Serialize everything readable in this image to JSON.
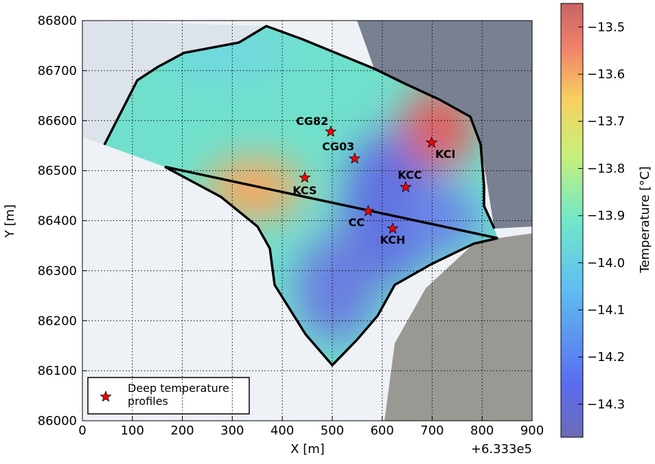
{
  "chart_data": {
    "type": "scatter",
    "xlabel": "X [m]",
    "ylabel": "Y [m]",
    "x_offset_label": "+6.333e5",
    "xlim": [
      0,
      900
    ],
    "xticks": [
      0,
      100,
      200,
      300,
      400,
      500,
      600,
      700,
      800,
      900
    ],
    "ylim": [
      86000,
      86800
    ],
    "yticks": [
      86000,
      86100,
      86200,
      86300,
      86400,
      86500,
      86600,
      86700,
      86800
    ],
    "grid": true,
    "legend_position": "lower left",
    "series": [
      {
        "name": "Deep temperature profiles",
        "color": "#ff0000",
        "labels": [
          "KCS",
          "CG82",
          "CG03",
          "KCI",
          "KCC",
          "CC",
          "KCH"
        ],
        "x": [
          445,
          497,
          545,
          699,
          647,
          572,
          621
        ],
        "values": [
          86486,
          86578,
          86524,
          86556,
          86467,
          86419,
          86384
        ]
      }
    ],
    "colorbar": {
      "label": "Temperature [°C]",
      "clim": [
        -14.37,
        -13.45
      ],
      "ticks": [
        {
          "value": -13.5,
          "label": "−13.5"
        },
        {
          "value": -13.6,
          "label": "−13.6"
        },
        {
          "value": -13.7,
          "label": "−13.7"
        },
        {
          "value": -13.8,
          "label": "−13.8"
        },
        {
          "value": -13.9,
          "label": "−13.9"
        },
        {
          "value": -14.0,
          "label": "−14.0"
        },
        {
          "value": -14.1,
          "label": "−14.1"
        },
        {
          "value": -14.2,
          "label": "−14.2"
        },
        {
          "value": -14.3,
          "label": "−14.3"
        }
      ]
    }
  }
}
